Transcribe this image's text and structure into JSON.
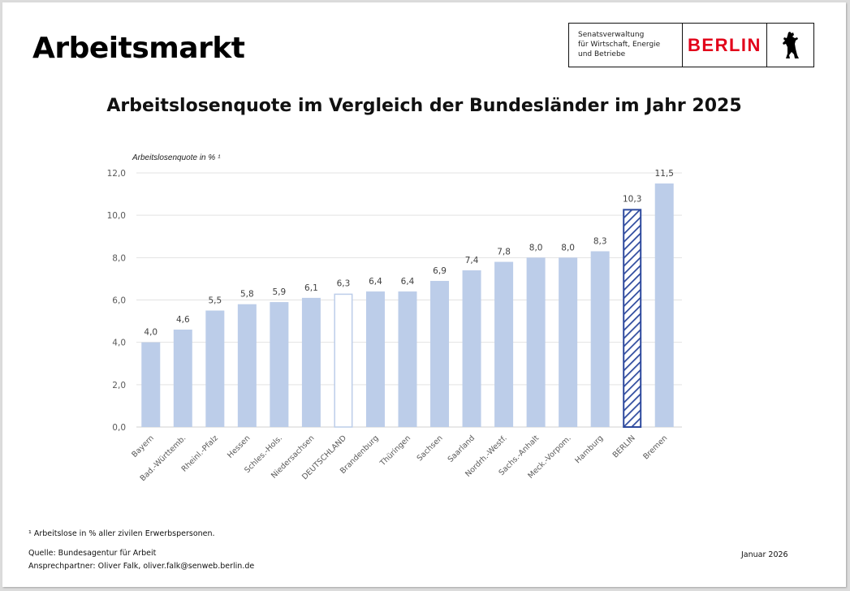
{
  "header": {
    "title": "Arbeitsmarkt",
    "logo": {
      "department_lines": [
        "Senatsverwaltung",
        "für Wirtschaft, Energie",
        "und Betriebe"
      ],
      "city": "BERLIN",
      "emblem": "berlin-bear-icon"
    }
  },
  "colors": {
    "bar_fill": "#bccde9",
    "germany_outline": "#bccde9",
    "berlin_hatch": "#2e4a9e",
    "logo_red": "#e2001a",
    "gridline": "#e3e3e3"
  },
  "chart_data": {
    "type": "bar",
    "title": "Arbeitslosenquote im Vergleich der Bundesländer im Jahr 2025",
    "xlabel": "",
    "ylabel": "Arbeitslosenquote in % ¹",
    "ylim": [
      0,
      12
    ],
    "yticks": [
      0,
      2,
      4,
      6,
      8,
      10,
      12
    ],
    "ytick_labels": [
      "0,0",
      "2,0",
      "4,0",
      "6,0",
      "8,0",
      "10,0",
      "12,0"
    ],
    "grid": true,
    "legend": "none",
    "categories": [
      "Bayern",
      "Bad.-Württemb.",
      "Rheinl.-Pfalz",
      "Hessen",
      "Schles.-Hols.",
      "Niedersachsen",
      "DEUTSCHLAND",
      "Brandenburg",
      "Thüringen",
      "Sachsen",
      "Saarland",
      "Nordrh.-Westf.",
      "Sachs.-Anhalt",
      "Meck.-Vorpom.",
      "Hamburg",
      "BERLIN",
      "Bremen"
    ],
    "values": [
      4.0,
      4.6,
      5.5,
      5.8,
      5.9,
      6.1,
      6.3,
      6.4,
      6.4,
      6.9,
      7.4,
      7.8,
      8.0,
      8.0,
      8.3,
      10.3,
      11.5
    ],
    "value_labels": [
      "4,0",
      "4,6",
      "5,5",
      "5,8",
      "5,9",
      "6,1",
      "6,3",
      "6,4",
      "6,4",
      "6,9",
      "7,4",
      "7,8",
      "8,0",
      "8,0",
      "8,3",
      "10,3",
      "11,5"
    ],
    "bar_styles": [
      "solid",
      "solid",
      "solid",
      "solid",
      "solid",
      "solid",
      "outline",
      "solid",
      "solid",
      "solid",
      "solid",
      "solid",
      "solid",
      "solid",
      "solid",
      "hatched",
      "solid"
    ]
  },
  "footer": {
    "footnote": "¹ Arbeitslose in % aller zivilen Erwerbspersonen.",
    "source": "Quelle: Bundesagentur für Arbeit",
    "contact": "Ansprechpartner: Oliver Falk, oliver.falk@senweb.berlin.de",
    "date": "Januar 2026"
  }
}
